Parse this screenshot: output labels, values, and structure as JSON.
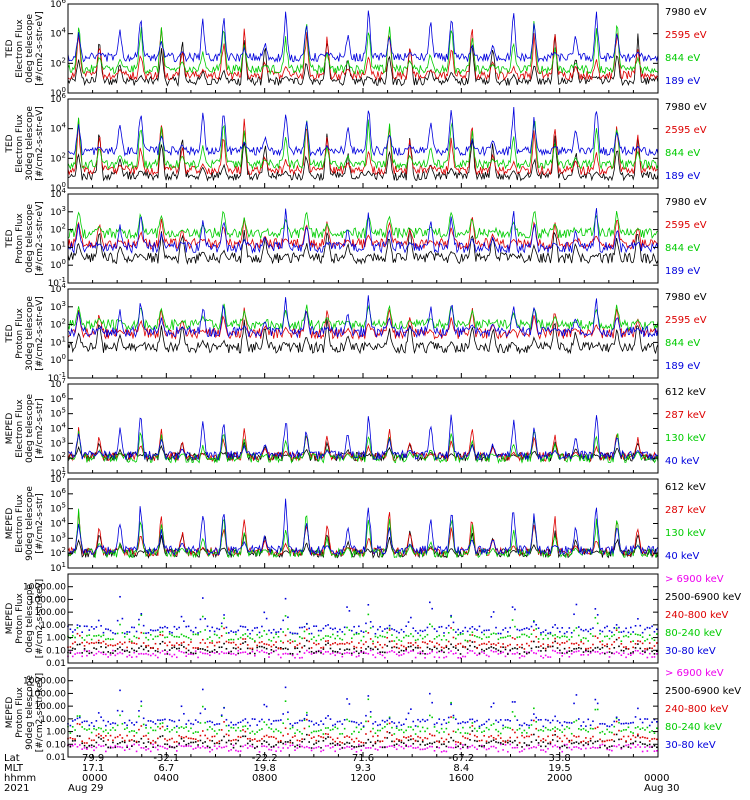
{
  "chart_data": [
    {
      "type": "line",
      "ylabel": [
        "TED",
        "Electron Flux",
        "0deg telescope",
        "[#/cm2-s-str-eV]"
      ],
      "yscale": "log",
      "ylim": [
        1,
        1000000
      ],
      "yticks": [
        "10^0",
        "10^2",
        "10^4",
        "10^6"
      ],
      "series": [
        {
          "name": "7980 eV",
          "color": "#000000",
          "baseline": 0.8,
          "spike_mag": 3.5
        },
        {
          "name": "2595 eV",
          "color": "#dd0000",
          "baseline": 1.2,
          "spike_mag": 3.8
        },
        {
          "name": "844 eV",
          "color": "#00cc00",
          "baseline": 1.6,
          "spike_mag": 3.9
        },
        {
          "name": "189 eV",
          "color": "#0000dd",
          "baseline": 2.4,
          "spike_mag": 3.6
        }
      ]
    },
    {
      "type": "line",
      "ylabel": [
        "TED",
        "Electron Flux",
        "30deg telescope",
        "[#/cm2-s-str-eV]"
      ],
      "yscale": "log",
      "ylim": [
        1,
        1000000
      ],
      "yticks": [
        "10^0",
        "10^2",
        "10^4",
        "10^6"
      ],
      "series": [
        {
          "name": "7980 eV",
          "color": "#000000",
          "baseline": 0.8,
          "spike_mag": 3.5
        },
        {
          "name": "2595 eV",
          "color": "#dd0000",
          "baseline": 1.2,
          "spike_mag": 3.9
        },
        {
          "name": "844 eV",
          "color": "#00cc00",
          "baseline": 1.6,
          "spike_mag": 4.0
        },
        {
          "name": "189 eV",
          "color": "#0000dd",
          "baseline": 2.5,
          "spike_mag": 3.6
        }
      ]
    },
    {
      "type": "line",
      "ylabel": [
        "TED",
        "Proton Flux",
        "0deg telescope",
        "[#/cm2-s-str-eV]"
      ],
      "yscale": "log",
      "ylim": [
        0.1,
        10000
      ],
      "yticks": [
        "10^-1",
        "10^0",
        "10^1",
        "10^2",
        "10^3",
        "10^4"
      ],
      "series": [
        {
          "name": "7980 eV",
          "color": "#000000",
          "baseline": 0.4,
          "spike_mag": 2.0
        },
        {
          "name": "2595 eV",
          "color": "#dd0000",
          "baseline": 1.2,
          "spike_mag": 1.8
        },
        {
          "name": "844 eV",
          "color": "#00cc00",
          "baseline": 1.8,
          "spike_mag": 1.6
        },
        {
          "name": "189 eV",
          "color": "#0000dd",
          "baseline": 1.0,
          "spike_mag": 2.4
        }
      ]
    },
    {
      "type": "line",
      "ylabel": [
        "TED",
        "Proton Flux",
        "30deg telescope",
        "[#/cm2-s-str-eV]"
      ],
      "yscale": "log",
      "ylim": [
        0.1,
        10000
      ],
      "yticks": [
        "10^-1",
        "10^0",
        "10^1",
        "10^2",
        "10^3",
        "10^4"
      ],
      "series": [
        {
          "name": "7980 eV",
          "color": "#000000",
          "baseline": 0.7,
          "spike_mag": 1.8
        },
        {
          "name": "2595 eV",
          "color": "#dd0000",
          "baseline": 1.5,
          "spike_mag": 1.8
        },
        {
          "name": "844 eV",
          "color": "#00cc00",
          "baseline": 2.0,
          "spike_mag": 1.4
        },
        {
          "name": "189 eV",
          "color": "#0000dd",
          "baseline": 1.6,
          "spike_mag": 2.2
        }
      ]
    },
    {
      "type": "line",
      "ylabel": [
        "MEPED",
        "Electron Flux",
        "0deg telescope",
        "[#/cm2-s-str]"
      ],
      "yscale": "log",
      "ylim": [
        10,
        10000000
      ],
      "yticks": [
        "10^1",
        "10^2",
        "10^3",
        "10^4",
        "10^5",
        "10^6",
        "10^7"
      ],
      "series": [
        {
          "name": "612 keV",
          "color": "#000000",
          "baseline": 2.1,
          "spike_mag": 1.2
        },
        {
          "name": "287 keV",
          "color": "#dd0000",
          "baseline": 2.1,
          "spike_mag": 2.2
        },
        {
          "name": "130 keV",
          "color": "#00cc00",
          "baseline": 2.0,
          "spike_mag": 2.4
        },
        {
          "name": "40 keV",
          "color": "#0000dd",
          "baseline": 2.2,
          "spike_mag": 3.3
        }
      ]
    },
    {
      "type": "line",
      "ylabel": [
        "MEPED",
        "Electron Flux",
        "90deg telescope",
        "[#/cm2-s-str]"
      ],
      "yscale": "log",
      "ylim": [
        10,
        10000000
      ],
      "yticks": [
        "10^1",
        "10^2",
        "10^3",
        "10^4",
        "10^5",
        "10^6",
        "10^7"
      ],
      "series": [
        {
          "name": "612 keV",
          "color": "#000000",
          "baseline": 2.0,
          "spike_mag": 1.8
        },
        {
          "name": "287 keV",
          "color": "#dd0000",
          "baseline": 2.1,
          "spike_mag": 3.0
        },
        {
          "name": "130 keV",
          "color": "#00cc00",
          "baseline": 2.0,
          "spike_mag": 3.2
        },
        {
          "name": "40 keV",
          "color": "#0000dd",
          "baseline": 2.2,
          "spike_mag": 3.8
        }
      ]
    },
    {
      "type": "scatter",
      "ylabel": [
        "MEPED",
        "Proton Flux",
        "0deg telescope",
        "[#/cm2-s-str-keV]"
      ],
      "yscale": "log",
      "ylim": [
        0.01,
        100000
      ],
      "yticks": [
        "0.01",
        "0.10",
        "1.00",
        "10.00",
        "100.00",
        "1000.00",
        "10000.00"
      ],
      "series": [
        {
          "name": "> 6900 keV",
          "color": "#ee00ee",
          "baseline": -1.3,
          "spike_mag": 0.3
        },
        {
          "name": "2500-6900 keV",
          "color": "#000000",
          "baseline": -1.0,
          "spike_mag": 1.0
        },
        {
          "name": "240-800 keV",
          "color": "#dd0000",
          "baseline": -0.6,
          "spike_mag": 1.6
        },
        {
          "name": "80-240 keV",
          "color": "#00cc00",
          "baseline": 0.0,
          "spike_mag": 2.2
        },
        {
          "name": "30-80 keV",
          "color": "#0000dd",
          "baseline": 0.6,
          "spike_mag": 3.0
        }
      ]
    },
    {
      "type": "scatter",
      "ylabel": [
        "MEPED",
        "Proton Flux",
        "90deg telescope",
        "[#/cm2-s-str-keV]"
      ],
      "yscale": "log",
      "ylim": [
        0.01,
        100000
      ],
      "yticks": [
        "0.01",
        "0.10",
        "1.00",
        "10.00",
        "100.00",
        "1000.00",
        "10000.00"
      ],
      "series": [
        {
          "name": "> 6900 keV",
          "color": "#ee00ee",
          "baseline": -1.3,
          "spike_mag": 0.3
        },
        {
          "name": "2500-6900 keV",
          "color": "#000000",
          "baseline": -1.0,
          "spike_mag": 1.2
        },
        {
          "name": "240-800 keV",
          "color": "#dd0000",
          "baseline": -0.6,
          "spike_mag": 2.0
        },
        {
          "name": "80-240 keV",
          "color": "#00cc00",
          "baseline": 0.1,
          "spike_mag": 2.8
        },
        {
          "name": "30-80 keV",
          "color": "#0000dd",
          "baseline": 0.7,
          "spike_mag": 3.2
        }
      ]
    }
  ],
  "x_axis": {
    "row_labels": [
      "Lat",
      "MLT",
      "hhmm",
      "2021"
    ],
    "ticks": [
      {
        "lat": "79.9",
        "mlt": "17.1",
        "hhmm": "0000",
        "date": "Aug 29"
      },
      {
        "lat": "-32.1",
        "mlt": "6.7",
        "hhmm": "0400",
        "date": ""
      },
      {
        "lat": "-22.2",
        "mlt": "19.8",
        "hhmm": "0800",
        "date": ""
      },
      {
        "lat": "71.6",
        "mlt": "9.3",
        "hhmm": "1200",
        "date": ""
      },
      {
        "lat": "-67.2",
        "mlt": "8.4",
        "hhmm": "1600",
        "date": ""
      },
      {
        "lat": "33.8",
        "mlt": "19.5",
        "hhmm": "2000",
        "date": ""
      },
      {
        "lat": "",
        "mlt": "",
        "hhmm": "0000",
        "date": "Aug 30"
      }
    ]
  }
}
